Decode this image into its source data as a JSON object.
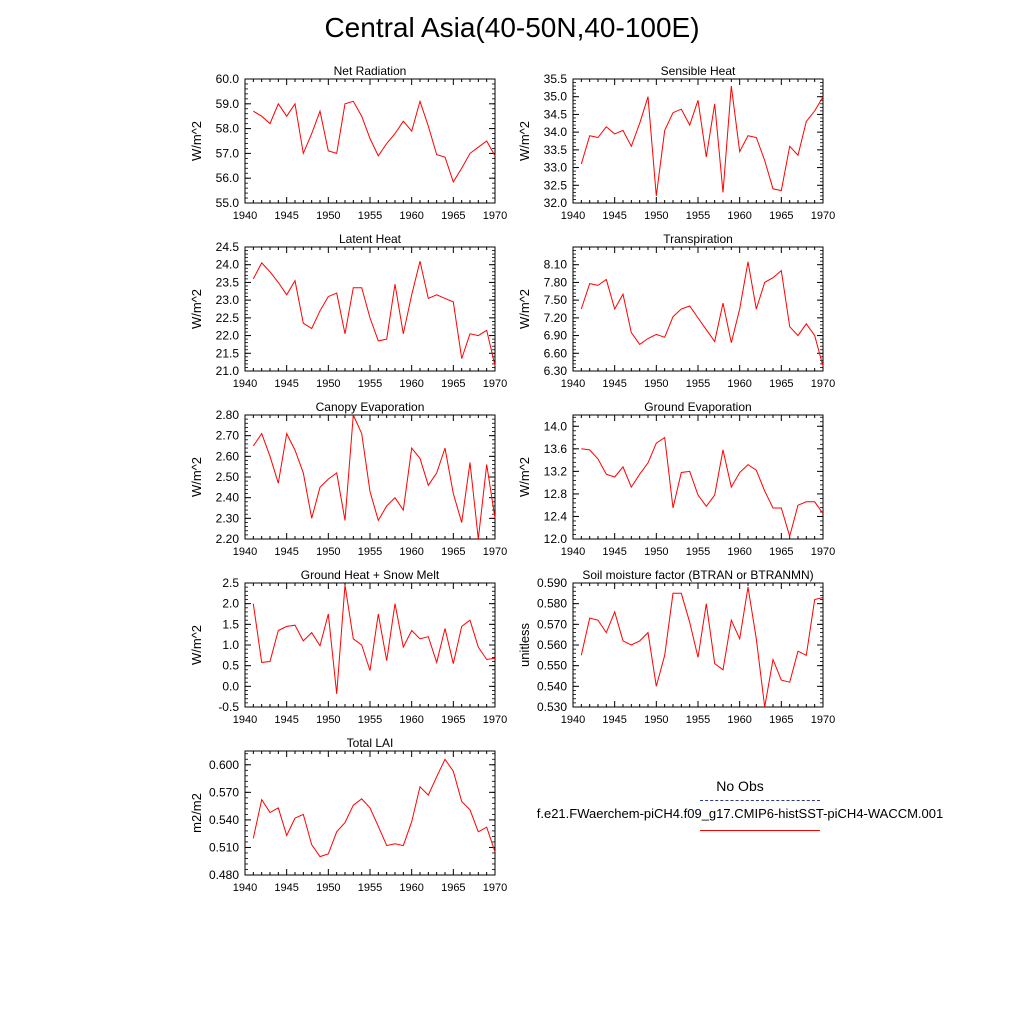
{
  "title": "Central Asia(40-50N,40-100E)",
  "legend": {
    "obs_label": "No Obs",
    "obs_color": "#2b3a8f",
    "model_label": "f.e21.FWaerchem-piCH4.f09_g17.CMIP6-histSST-piCH4-WACCM.001",
    "model_color": "#ff0000"
  },
  "chart_data": [
    {
      "type": "line",
      "title": "Net Radiation",
      "ylabel": "W/m^2",
      "xlim": [
        1940,
        1970
      ],
      "ylim": [
        55.0,
        60.0
      ],
      "xticks": [
        "1940",
        "1945",
        "1950",
        "1955",
        "1960",
        "1965",
        "1970"
      ],
      "yticks": [
        "55.0",
        "56.0",
        "57.0",
        "58.0",
        "59.0",
        "60.0"
      ],
      "x": [
        1941,
        1942,
        1943,
        1944,
        1945,
        1946,
        1947,
        1948,
        1949,
        1950,
        1951,
        1952,
        1953,
        1954,
        1955,
        1956,
        1957,
        1958,
        1959,
        1960,
        1961,
        1962,
        1963,
        1964,
        1965,
        1966,
        1967,
        1968,
        1969,
        1970
      ],
      "series": [
        {
          "color": "#ff0000",
          "values": [
            58.7,
            58.5,
            58.2,
            59.0,
            58.5,
            59.0,
            57.0,
            57.8,
            58.7,
            57.1,
            57.0,
            59.0,
            59.1,
            58.5,
            57.6,
            56.9,
            57.4,
            57.8,
            58.3,
            57.9,
            59.1,
            58.1,
            56.95,
            56.85,
            55.85,
            56.4,
            57.0,
            57.25,
            57.5,
            56.9
          ]
        }
      ]
    },
    {
      "type": "line",
      "title": "Sensible Heat",
      "ylabel": "W/m^2",
      "xlim": [
        1940,
        1970
      ],
      "ylim": [
        32.0,
        35.5
      ],
      "xticks": [
        "1940",
        "1945",
        "1950",
        "1955",
        "1960",
        "1965",
        "1970"
      ],
      "yticks": [
        "32.0",
        "32.5",
        "33.0",
        "33.5",
        "34.0",
        "34.5",
        "35.0",
        "35.5"
      ],
      "x": [
        1941,
        1942,
        1943,
        1944,
        1945,
        1946,
        1947,
        1948,
        1949,
        1950,
        1951,
        1952,
        1953,
        1954,
        1955,
        1956,
        1957,
        1958,
        1959,
        1960,
        1961,
        1962,
        1963,
        1964,
        1965,
        1966,
        1967,
        1968,
        1969,
        1970
      ],
      "series": [
        {
          "color": "#ff0000",
          "values": [
            33.1,
            33.9,
            33.85,
            34.15,
            33.95,
            34.05,
            33.6,
            34.25,
            35.0,
            32.2,
            34.05,
            34.55,
            34.65,
            34.2,
            34.9,
            33.3,
            34.8,
            32.3,
            35.3,
            33.45,
            33.9,
            33.85,
            33.2,
            32.4,
            32.35,
            33.6,
            33.35,
            34.3,
            34.6,
            35.0
          ]
        }
      ]
    },
    {
      "type": "line",
      "title": "Latent Heat",
      "ylabel": "W/m^2",
      "xlim": [
        1940,
        1970
      ],
      "ylim": [
        21.0,
        24.5
      ],
      "xticks": [
        "1940",
        "1945",
        "1950",
        "1955",
        "1960",
        "1965",
        "1970"
      ],
      "yticks": [
        "21.0",
        "21.5",
        "22.0",
        "22.5",
        "23.0",
        "23.5",
        "24.0",
        "24.5"
      ],
      "x": [
        1941,
        1942,
        1943,
        1944,
        1945,
        1946,
        1947,
        1948,
        1949,
        1950,
        1951,
        1952,
        1953,
        1954,
        1955,
        1956,
        1957,
        1958,
        1959,
        1960,
        1961,
        1962,
        1963,
        1964,
        1965,
        1966,
        1967,
        1968,
        1969,
        1970
      ],
      "series": [
        {
          "color": "#ff0000",
          "values": [
            23.6,
            24.05,
            23.8,
            23.5,
            23.15,
            23.55,
            22.35,
            22.2,
            22.7,
            23.1,
            23.2,
            22.05,
            23.35,
            23.35,
            22.5,
            21.85,
            21.9,
            23.45,
            22.05,
            23.15,
            24.1,
            23.05,
            23.15,
            23.05,
            22.95,
            21.35,
            22.05,
            22.0,
            22.15,
            21.15
          ]
        }
      ]
    },
    {
      "type": "line",
      "title": "Transpiration",
      "ylabel": "W/m^2",
      "xlim": [
        1940,
        1970
      ],
      "ylim": [
        6.3,
        8.4
      ],
      "xticks": [
        "1940",
        "1945",
        "1950",
        "1955",
        "1960",
        "1965",
        "1970"
      ],
      "yticks": [
        "6.30",
        "6.60",
        "6.90",
        "7.20",
        "7.50",
        "7.80",
        "8.10"
      ],
      "x": [
        1941,
        1942,
        1943,
        1944,
        1945,
        1946,
        1947,
        1948,
        1949,
        1950,
        1951,
        1952,
        1953,
        1954,
        1955,
        1956,
        1957,
        1958,
        1959,
        1960,
        1961,
        1962,
        1963,
        1964,
        1965,
        1966,
        1967,
        1968,
        1969,
        1970
      ],
      "series": [
        {
          "color": "#ff0000",
          "values": [
            7.35,
            7.78,
            7.75,
            7.85,
            7.35,
            7.6,
            6.95,
            6.75,
            6.85,
            6.92,
            6.87,
            7.22,
            7.35,
            7.4,
            7.2,
            7.0,
            6.8,
            7.45,
            6.78,
            7.35,
            8.15,
            7.35,
            7.8,
            7.88,
            8.0,
            7.05,
            6.9,
            7.1,
            6.9,
            6.38
          ]
        }
      ]
    },
    {
      "type": "line",
      "title": "Canopy Evaporation",
      "ylabel": "W/m^2",
      "xlim": [
        1940,
        1970
      ],
      "ylim": [
        2.2,
        2.8
      ],
      "xticks": [
        "1940",
        "1945",
        "1950",
        "1955",
        "1960",
        "1965",
        "1970"
      ],
      "yticks": [
        "2.20",
        "2.30",
        "2.40",
        "2.50",
        "2.60",
        "2.70",
        "2.80"
      ],
      "x": [
        1941,
        1942,
        1943,
        1944,
        1945,
        1946,
        1947,
        1948,
        1949,
        1950,
        1951,
        1952,
        1953,
        1954,
        1955,
        1956,
        1957,
        1958,
        1959,
        1960,
        1961,
        1962,
        1963,
        1964,
        1965,
        1966,
        1967,
        1968,
        1969,
        1970
      ],
      "series": [
        {
          "color": "#ff0000",
          "values": [
            2.65,
            2.71,
            2.6,
            2.47,
            2.71,
            2.63,
            2.52,
            2.3,
            2.45,
            2.49,
            2.52,
            2.29,
            2.8,
            2.71,
            2.43,
            2.29,
            2.36,
            2.4,
            2.34,
            2.64,
            2.59,
            2.46,
            2.52,
            2.64,
            2.42,
            2.28,
            2.57,
            2.2,
            2.56,
            2.3
          ]
        }
      ]
    },
    {
      "type": "line",
      "title": "Ground Evaporation",
      "ylabel": "W/m^2",
      "xlim": [
        1940,
        1970
      ],
      "ylim": [
        12.0,
        14.2
      ],
      "xticks": [
        "1940",
        "1945",
        "1950",
        "1955",
        "1960",
        "1965",
        "1970"
      ],
      "yticks": [
        "12.0",
        "12.4",
        "12.8",
        "13.2",
        "13.6",
        "14.0"
      ],
      "x": [
        1941,
        1942,
        1943,
        1944,
        1945,
        1946,
        1947,
        1948,
        1949,
        1950,
        1951,
        1952,
        1953,
        1954,
        1955,
        1956,
        1957,
        1958,
        1959,
        1960,
        1961,
        1962,
        1963,
        1964,
        1965,
        1966,
        1967,
        1968,
        1969,
        1970
      ],
      "series": [
        {
          "color": "#ff0000",
          "values": [
            13.6,
            13.58,
            13.42,
            13.15,
            13.1,
            13.28,
            12.92,
            13.15,
            13.35,
            13.7,
            13.8,
            12.55,
            13.18,
            13.2,
            12.78,
            12.58,
            12.78,
            13.58,
            12.92,
            13.18,
            13.32,
            13.22,
            12.85,
            12.55,
            12.55,
            12.05,
            12.6,
            12.66,
            12.66,
            12.45
          ]
        }
      ]
    },
    {
      "type": "line",
      "title": "Ground Heat + Snow Melt",
      "ylabel": "W/m^2",
      "xlim": [
        1940,
        1970
      ],
      "ylim": [
        -0.5,
        2.5
      ],
      "xticks": [
        "1940",
        "1945",
        "1950",
        "1955",
        "1960",
        "1965",
        "1970"
      ],
      "yticks": [
        "-0.5",
        "0.0",
        "0.5",
        "1.0",
        "1.5",
        "2.0",
        "2.5"
      ],
      "x": [
        1941,
        1942,
        1943,
        1944,
        1945,
        1946,
        1947,
        1948,
        1949,
        1950,
        1951,
        1952,
        1953,
        1954,
        1955,
        1956,
        1957,
        1958,
        1959,
        1960,
        1961,
        1962,
        1963,
        1964,
        1965,
        1966,
        1967,
        1968,
        1969,
        1970
      ],
      "series": [
        {
          "color": "#ff0000",
          "values": [
            2.0,
            0.58,
            0.6,
            1.35,
            1.45,
            1.48,
            1.1,
            1.3,
            0.98,
            1.75,
            -0.18,
            2.45,
            1.15,
            1.0,
            0.38,
            1.75,
            0.62,
            2.0,
            0.95,
            1.35,
            1.15,
            1.2,
            0.58,
            1.4,
            0.55,
            1.45,
            1.6,
            0.95,
            0.65,
            0.68
          ]
        }
      ]
    },
    {
      "type": "line",
      "title": "Soil moisture factor (BTRAN or BTRANMN)",
      "ylabel": "unitless",
      "xlim": [
        1940,
        1970
      ],
      "ylim": [
        0.53,
        0.59
      ],
      "xticks": [
        "1940",
        "1945",
        "1950",
        "1955",
        "1960",
        "1965",
        "1970"
      ],
      "yticks": [
        "0.530",
        "0.540",
        "0.550",
        "0.560",
        "0.570",
        "0.580",
        "0.590"
      ],
      "x": [
        1941,
        1942,
        1943,
        1944,
        1945,
        1946,
        1947,
        1948,
        1949,
        1950,
        1951,
        1952,
        1953,
        1954,
        1955,
        1956,
        1957,
        1958,
        1959,
        1960,
        1961,
        1962,
        1963,
        1964,
        1965,
        1966,
        1967,
        1968,
        1969,
        1970
      ],
      "series": [
        {
          "color": "#ff0000",
          "values": [
            0.555,
            0.573,
            0.572,
            0.566,
            0.576,
            0.562,
            0.56,
            0.562,
            0.566,
            0.54,
            0.555,
            0.585,
            0.585,
            0.571,
            0.554,
            0.58,
            0.551,
            0.548,
            0.572,
            0.563,
            0.588,
            0.563,
            0.53,
            0.553,
            0.543,
            0.542,
            0.557,
            0.555,
            0.582,
            0.583
          ]
        }
      ]
    },
    {
      "type": "line",
      "title": "Total LAI",
      "ylabel": "m2/m2",
      "xlim": [
        1940,
        1970
      ],
      "ylim": [
        0.48,
        0.615
      ],
      "xticks": [
        "1940",
        "1945",
        "1950",
        "1955",
        "1960",
        "1965",
        "1970"
      ],
      "yticks": [
        "0.480",
        "0.510",
        "0.540",
        "0.570",
        "0.600"
      ],
      "x": [
        1941,
        1942,
        1943,
        1944,
        1945,
        1946,
        1947,
        1948,
        1949,
        1950,
        1951,
        1952,
        1953,
        1954,
        1955,
        1956,
        1957,
        1958,
        1959,
        1960,
        1961,
        1962,
        1963,
        1964,
        1965,
        1966,
        1967,
        1968,
        1969,
        1970
      ],
      "series": [
        {
          "color": "#ff0000",
          "values": [
            0.52,
            0.562,
            0.548,
            0.553,
            0.523,
            0.542,
            0.546,
            0.513,
            0.5,
            0.503,
            0.527,
            0.537,
            0.556,
            0.563,
            0.553,
            0.533,
            0.512,
            0.514,
            0.512,
            0.538,
            0.576,
            0.567,
            0.587,
            0.606,
            0.593,
            0.56,
            0.551,
            0.527,
            0.532,
            0.505
          ]
        }
      ]
    }
  ]
}
